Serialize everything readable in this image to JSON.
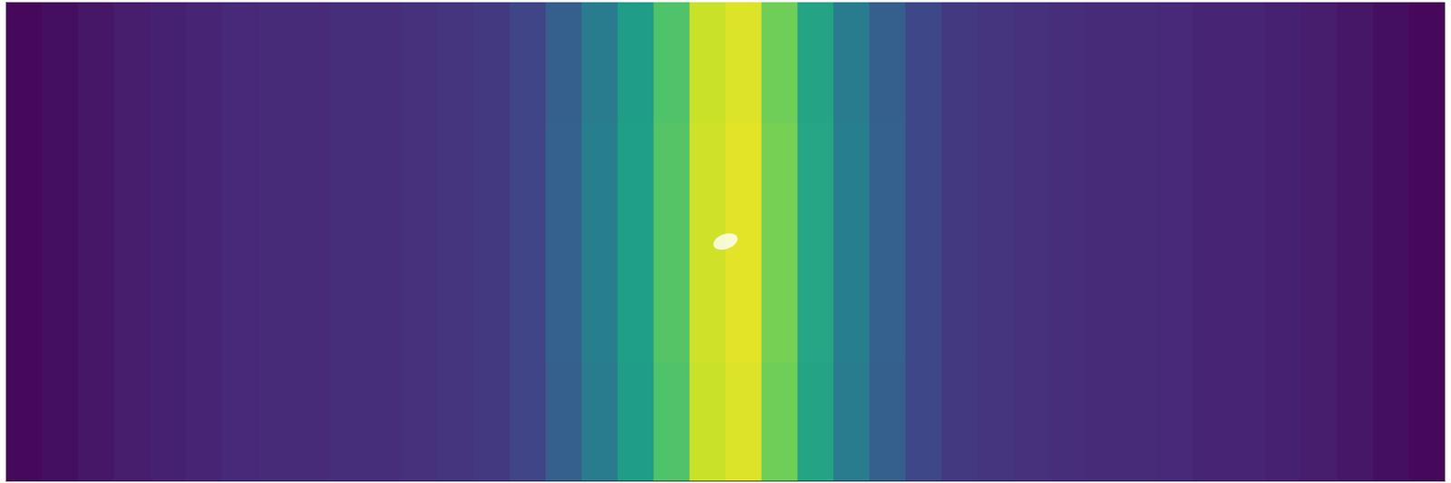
{
  "chart_data": {
    "type": "heatmap",
    "x": [
      0.0125,
      0.0375,
      0.0625,
      0.0875,
      0.1125,
      0.1375,
      0.1625,
      0.1875,
      0.2125,
      0.2375,
      0.2625,
      0.2875,
      0.3125,
      0.3375,
      0.3625,
      0.3875,
      0.4125,
      0.4375,
      0.4625,
      0.4875,
      0.5125,
      0.5375,
      0.5625,
      0.5875,
      0.6125,
      0.6375,
      0.6625,
      0.6875,
      0.7125,
      0.7375,
      0.7625,
      0.7875,
      0.8125,
      0.8375,
      0.8625,
      0.8875,
      0.9125,
      0.9375,
      0.9625,
      0.9875
    ],
    "y": [
      0.125,
      0.375,
      0.625,
      0.875
    ],
    "values": [
      [
        0.02,
        0.04,
        0.06,
        0.08,
        0.09,
        0.1,
        0.11,
        0.12,
        0.12,
        0.13,
        0.13,
        0.14,
        0.15,
        0.17,
        0.21,
        0.3,
        0.42,
        0.55,
        0.72,
        0.92,
        0.95,
        0.78,
        0.58,
        0.42,
        0.3,
        0.22,
        0.17,
        0.15,
        0.14,
        0.13,
        0.12,
        0.12,
        0.11,
        0.1,
        0.1,
        0.09,
        0.08,
        0.06,
        0.04,
        0.02
      ],
      [
        0.02,
        0.04,
        0.06,
        0.08,
        0.09,
        0.1,
        0.11,
        0.12,
        0.12,
        0.13,
        0.13,
        0.14,
        0.15,
        0.17,
        0.21,
        0.31,
        0.43,
        0.56,
        0.73,
        0.93,
        0.96,
        0.79,
        0.59,
        0.43,
        0.31,
        0.22,
        0.17,
        0.15,
        0.14,
        0.13,
        0.12,
        0.12,
        0.11,
        0.1,
        0.1,
        0.09,
        0.08,
        0.06,
        0.04,
        0.02
      ],
      [
        0.02,
        0.04,
        0.06,
        0.08,
        0.09,
        0.1,
        0.11,
        0.12,
        0.12,
        0.13,
        0.13,
        0.14,
        0.15,
        0.17,
        0.21,
        0.31,
        0.43,
        0.56,
        0.73,
        0.93,
        0.96,
        0.79,
        0.59,
        0.43,
        0.31,
        0.22,
        0.17,
        0.15,
        0.14,
        0.13,
        0.12,
        0.12,
        0.11,
        0.1,
        0.1,
        0.09,
        0.08,
        0.06,
        0.04,
        0.02
      ],
      [
        0.02,
        0.04,
        0.06,
        0.08,
        0.09,
        0.1,
        0.11,
        0.12,
        0.12,
        0.13,
        0.13,
        0.14,
        0.15,
        0.17,
        0.21,
        0.3,
        0.42,
        0.55,
        0.72,
        0.92,
        0.95,
        0.78,
        0.58,
        0.42,
        0.3,
        0.22,
        0.17,
        0.15,
        0.14,
        0.13,
        0.12,
        0.12,
        0.11,
        0.1,
        0.1,
        0.09,
        0.08,
        0.06,
        0.04,
        0.02
      ]
    ],
    "color_range": [
      0,
      1
    ],
    "obstacle": {
      "x": 0.5,
      "y": 0.5
    },
    "xlim": [
      0,
      1
    ],
    "ylim": [
      0,
      1
    ],
    "tick_labels": false,
    "grid": false
  }
}
